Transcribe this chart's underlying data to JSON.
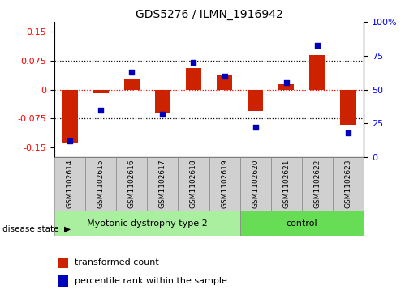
{
  "title": "GDS5276 / ILMN_1916942",
  "samples": [
    "GSM1102614",
    "GSM1102615",
    "GSM1102616",
    "GSM1102617",
    "GSM1102618",
    "GSM1102619",
    "GSM1102620",
    "GSM1102621",
    "GSM1102622",
    "GSM1102623"
  ],
  "red_values": [
    -0.138,
    -0.01,
    0.028,
    -0.06,
    0.055,
    0.038,
    -0.055,
    0.015,
    0.09,
    -0.09
  ],
  "blue_values": [
    12,
    35,
    63,
    32,
    70,
    60,
    22,
    55,
    83,
    18
  ],
  "ylim_left": [
    -0.175,
    0.175
  ],
  "ylim_right": [
    0,
    100
  ],
  "yticks_left": [
    -0.15,
    -0.075,
    0,
    0.075,
    0.15
  ],
  "yticks_right": [
    0,
    25,
    50,
    75,
    100
  ],
  "ytick_labels_left": [
    "-0.15",
    "-0.075",
    "0",
    "0.075",
    "0.15"
  ],
  "ytick_labels_right": [
    "0",
    "25",
    "50",
    "75",
    "100%"
  ],
  "hlines_dotted": [
    0.075,
    -0.075
  ],
  "hline_red": 0,
  "group1_label": "Myotonic dystrophy type 2",
  "group2_label": "control",
  "group1_indices": [
    0,
    1,
    2,
    3,
    4,
    5
  ],
  "group2_indices": [
    6,
    7,
    8,
    9
  ],
  "disease_state_label": "disease state",
  "legend_red": "transformed count",
  "legend_blue": "percentile rank within the sample",
  "bar_color": "#cc2200",
  "dot_color": "#0000bb",
  "group1_color": "#aaeea0",
  "group2_color": "#66dd55",
  "label_box_color": "#d0d0d0",
  "label_box_edge": "#888888",
  "background_color": "#ffffff",
  "bar_width": 0.5,
  "dot_size": 22,
  "title_fontsize": 10,
  "axis_fontsize": 8,
  "label_fontsize": 6.5,
  "group_fontsize": 8,
  "legend_fontsize": 8
}
